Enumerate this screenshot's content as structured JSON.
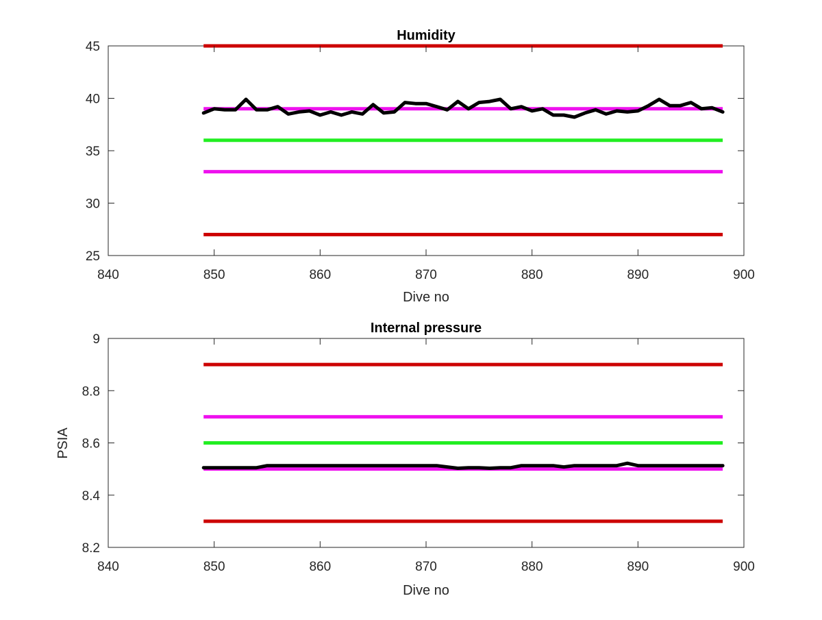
{
  "chart_data": [
    {
      "type": "line",
      "title": "Humidity",
      "xlabel": "Dive no",
      "ylabel": "",
      "xlim": [
        840,
        900
      ],
      "ylim": [
        25,
        45
      ],
      "xticks": [
        "840",
        "850",
        "860",
        "870",
        "880",
        "890",
        "900"
      ],
      "yticks": [
        "25",
        "30",
        "35",
        "40",
        "45"
      ],
      "grid": false,
      "x": [
        849,
        850,
        851,
        852,
        853,
        854,
        855,
        856,
        857,
        858,
        859,
        860,
        861,
        862,
        863,
        864,
        865,
        866,
        867,
        868,
        869,
        870,
        871,
        872,
        873,
        874,
        875,
        876,
        877,
        878,
        879,
        880,
        881,
        882,
        883,
        884,
        885,
        886,
        887,
        888,
        889,
        890,
        891,
        892,
        893,
        894,
        895,
        896,
        897,
        898
      ],
      "series": [
        {
          "color": "#000000",
          "values": [
            38.6,
            39.0,
            38.9,
            38.9,
            39.9,
            38.9,
            38.9,
            39.2,
            38.5,
            38.7,
            38.8,
            38.4,
            38.7,
            38.4,
            38.7,
            38.5,
            39.4,
            38.6,
            38.7,
            39.6,
            39.5,
            39.5,
            39.2,
            38.9,
            39.7,
            39.0,
            39.6,
            39.7,
            39.9,
            39.0,
            39.2,
            38.8,
            39.0,
            38.4,
            38.4,
            38.2,
            38.6,
            38.9,
            38.5,
            38.8,
            38.7,
            38.8,
            39.3,
            39.9,
            39.3,
            39.3,
            39.6,
            39.0,
            39.1,
            38.7
          ]
        }
      ],
      "reference_lines": [
        {
          "color": "#cc0000",
          "y": 45,
          "x_range": [
            849,
            898
          ]
        },
        {
          "color": "#ee11ee",
          "y": 39,
          "x_range": [
            849,
            898
          ]
        },
        {
          "color": "#22ee22",
          "y": 36,
          "x_range": [
            849,
            898
          ]
        },
        {
          "color": "#ee11ee",
          "y": 33,
          "x_range": [
            849,
            898
          ]
        },
        {
          "color": "#cc0000",
          "y": 27,
          "x_range": [
            849,
            898
          ]
        }
      ]
    },
    {
      "type": "line",
      "title": "Internal pressure",
      "xlabel": "Dive no",
      "ylabel": "PSIA",
      "xlim": [
        840,
        900
      ],
      "ylim": [
        8.2,
        9
      ],
      "xticks": [
        "840",
        "850",
        "860",
        "870",
        "880",
        "890",
        "900"
      ],
      "yticks": [
        "8.2",
        "8.4",
        "8.6",
        "8.8",
        "9"
      ],
      "grid": false,
      "x": [
        849,
        850,
        851,
        852,
        853,
        854,
        855,
        856,
        857,
        858,
        859,
        860,
        861,
        862,
        863,
        864,
        865,
        866,
        867,
        868,
        869,
        870,
        871,
        872,
        873,
        874,
        875,
        876,
        877,
        878,
        879,
        880,
        881,
        882,
        883,
        884,
        885,
        886,
        887,
        888,
        889,
        890,
        891,
        892,
        893,
        894,
        895,
        896,
        897,
        898
      ],
      "series": [
        {
          "color": "#000000",
          "values": [
            8.505,
            8.505,
            8.505,
            8.505,
            8.505,
            8.505,
            8.513,
            8.513,
            8.513,
            8.513,
            8.513,
            8.513,
            8.513,
            8.513,
            8.513,
            8.513,
            8.513,
            8.513,
            8.513,
            8.513,
            8.513,
            8.513,
            8.513,
            8.508,
            8.503,
            8.505,
            8.505,
            8.503,
            8.505,
            8.505,
            8.513,
            8.513,
            8.513,
            8.513,
            8.508,
            8.513,
            8.513,
            8.513,
            8.513,
            8.513,
            8.522,
            8.513,
            8.513,
            8.513,
            8.513,
            8.513,
            8.513,
            8.513,
            8.513,
            8.513
          ]
        }
      ],
      "reference_lines": [
        {
          "color": "#cc0000",
          "y": 8.9,
          "x_range": [
            849,
            898
          ]
        },
        {
          "color": "#ee11ee",
          "y": 8.7,
          "x_range": [
            849,
            898
          ]
        },
        {
          "color": "#22ee22",
          "y": 8.6,
          "x_range": [
            849,
            898
          ]
        },
        {
          "color": "#ee11ee",
          "y": 8.5,
          "x_range": [
            849,
            898
          ]
        },
        {
          "color": "#cc0000",
          "y": 8.3,
          "x_range": [
            849,
            898
          ]
        }
      ]
    }
  ]
}
